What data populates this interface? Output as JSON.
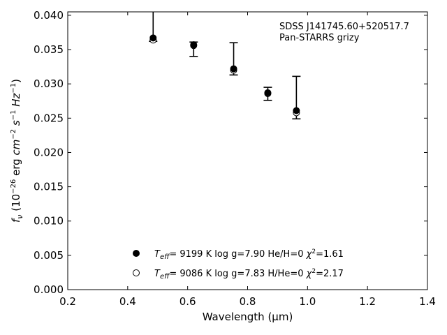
{
  "chart_data": {
    "type": "scatter",
    "xlabel": "Wavelength (μm)",
    "ylabel": "f_ν (10^-26 erg cm^-2 s^-1 Hz^-1)",
    "xlim": [
      0.2,
      1.4
    ],
    "ylim": [
      0.0,
      0.0405
    ],
    "x_ticks": [
      "0.2",
      "0.4",
      "0.6",
      "0.8",
      "1.0",
      "1.2",
      "1.4"
    ],
    "y_ticks": [
      "0.000",
      "0.005",
      "0.010",
      "0.015",
      "0.020",
      "0.025",
      "0.030",
      "0.035",
      "0.040"
    ],
    "grid": false,
    "annotation": [
      "SDSS J141745.60+520517.7",
      "Pan-STARRS grizy"
    ],
    "observed": {
      "x": [
        0.4849,
        0.6201,
        0.7535,
        0.8674,
        0.9628
      ],
      "y_err_low": [
        0.0362,
        0.034,
        0.0313,
        0.0276,
        0.0249
      ],
      "y_err_high": [
        0.041,
        0.0361,
        0.036,
        0.0295,
        0.0311
      ]
    },
    "series": [
      {
        "name": "He/H=0",
        "marker": "filled-circle",
        "x": [
          0.4849,
          0.6201,
          0.7535,
          0.8674,
          0.9628
        ],
        "y": [
          0.0367,
          0.0357,
          0.0322,
          0.0287,
          0.0261
        ]
      },
      {
        "name": "H/He=0",
        "marker": "open-circle",
        "x": [
          0.4849,
          0.6201,
          0.7535,
          0.8674,
          0.9628
        ],
        "y": [
          0.0364,
          0.0356,
          0.032,
          0.0286,
          0.0258
        ]
      }
    ],
    "legend": [
      {
        "teff": "9199 K",
        "logg": "log g=7.90",
        "comp": "He/H=0",
        "chi2": "=1.61"
      },
      {
        "teff": "9086 K",
        "logg": "log g=7.83",
        "comp": "H/He=0",
        "chi2": "=2.17"
      }
    ],
    "legend_placement": "lower-center"
  }
}
